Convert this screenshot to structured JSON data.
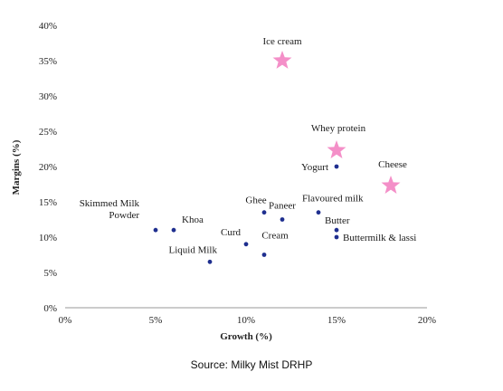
{
  "chart_data": {
    "type": "scatter",
    "title": "",
    "xlabel": "Growth (%)",
    "ylabel": "Margins (%)",
    "xlim": [
      0,
      20
    ],
    "ylim": [
      0,
      40
    ],
    "x_ticks": [
      0,
      5,
      10,
      15,
      20
    ],
    "x_tick_labels": [
      "0%",
      "5%",
      "10%",
      "15%",
      "20%"
    ],
    "y_ticks": [
      0,
      5,
      10,
      15,
      20,
      25,
      30,
      35,
      40
    ],
    "y_tick_labels": [
      "0%",
      "5%",
      "10%",
      "15%",
      "20%",
      "25%",
      "30%",
      "35%",
      "40%"
    ],
    "grid": false,
    "point_color": "#1f2f8f",
    "highlight_color": "#f48fc8",
    "points": [
      {
        "label": "Skimmed Milk Powder",
        "label_lines": [
          "Skimmed Milk",
          "Powder"
        ],
        "x": 5,
        "y": 11,
        "marker": "dot"
      },
      {
        "label": "Khoa",
        "x": 6,
        "y": 11,
        "marker": "dot"
      },
      {
        "label": "Liquid Milk",
        "x": 8,
        "y": 6.5,
        "marker": "dot"
      },
      {
        "label": "Curd",
        "x": 10,
        "y": 9,
        "marker": "dot"
      },
      {
        "label": "Ghee",
        "x": 11,
        "y": 13.5,
        "marker": "dot"
      },
      {
        "label": "Cream",
        "x": 11,
        "y": 7.5,
        "marker": "dot"
      },
      {
        "label": "Paneer",
        "x": 12,
        "y": 12.5,
        "marker": "dot"
      },
      {
        "label": "Flavoured milk",
        "x": 14,
        "y": 13.5,
        "marker": "dot"
      },
      {
        "label": "Butter",
        "x": 15,
        "y": 11,
        "marker": "dot"
      },
      {
        "label": "Buttermilk & lassi",
        "x": 15,
        "y": 10,
        "marker": "dot"
      },
      {
        "label": "Yogurt",
        "x": 15,
        "y": 20,
        "marker": "dot"
      },
      {
        "label": "Ice cream",
        "x": 12,
        "y": 35,
        "marker": "star"
      },
      {
        "label": "Whey protein",
        "x": 15,
        "y": 22.3,
        "marker": "star"
      },
      {
        "label": "Cheese",
        "x": 18,
        "y": 17.3,
        "marker": "star"
      }
    ]
  },
  "footer": {
    "source": "Source: Milky Mist DRHP"
  }
}
